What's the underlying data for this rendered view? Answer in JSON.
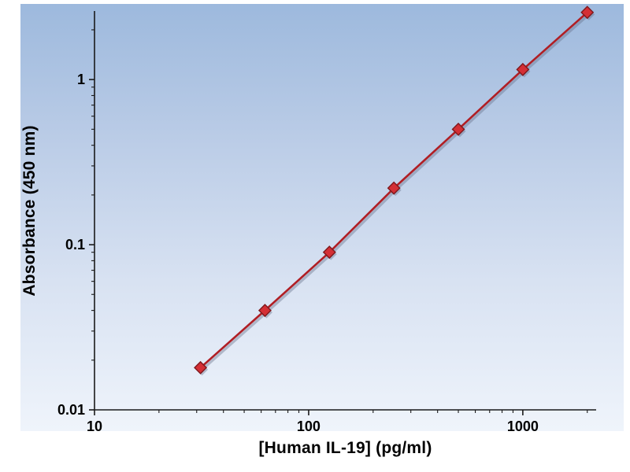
{
  "chart_data": {
    "type": "line",
    "x": [
      31.25,
      62.5,
      125,
      250,
      500,
      1000,
      2000
    ],
    "y": [
      0.018,
      0.04,
      0.09,
      0.22,
      0.5,
      1.15,
      2.55
    ],
    "title": "",
    "xlabel": "[Human IL-19] (pg/ml)",
    "ylabel": "Absorbance (450 nm)",
    "x_scale": "log",
    "y_scale": "log",
    "xlim": [
      10,
      2200
    ],
    "ylim": [
      0.01,
      2.6
    ],
    "x_ticks": {
      "values": [
        10,
        100,
        1000
      ],
      "labels": [
        "10",
        "100",
        "1000"
      ]
    },
    "y_ticks": {
      "values": [
        0.01,
        0.1,
        1
      ],
      "labels": [
        "0.01",
        "0.1",
        "1"
      ]
    },
    "grid": false,
    "legend": false,
    "marker": "diamond",
    "colors": {
      "line": "#b01e24",
      "marker_fill": "#d42f35",
      "marker_edge": "#7e181c",
      "axis": "#1a1a1a",
      "plot_bg_top": "#9db9dd",
      "plot_bg_bottom": "#eff4fb",
      "shadow": "rgba(100,110,135,0.40)"
    }
  }
}
